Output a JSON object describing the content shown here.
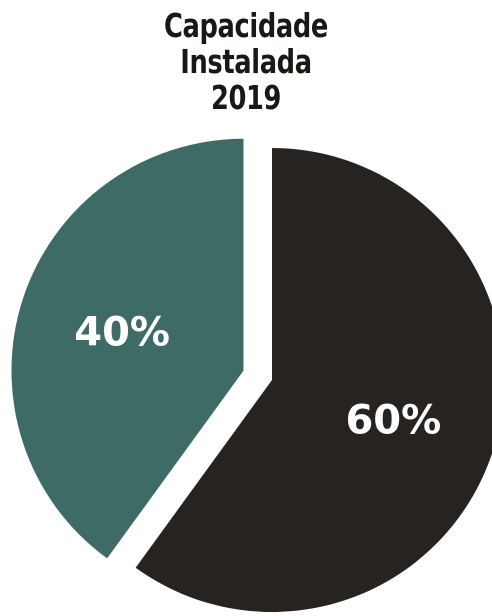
{
  "chart_data": {
    "type": "pie",
    "title_lines": [
      "Capacidade",
      "Instalada",
      "2019"
    ],
    "slices": [
      {
        "value": 40,
        "label": "40%",
        "color": "#3f6b66",
        "exploded": true
      },
      {
        "value": 60,
        "label": "60%",
        "color": "#272320",
        "exploded": false
      }
    ],
    "legend": "none"
  }
}
